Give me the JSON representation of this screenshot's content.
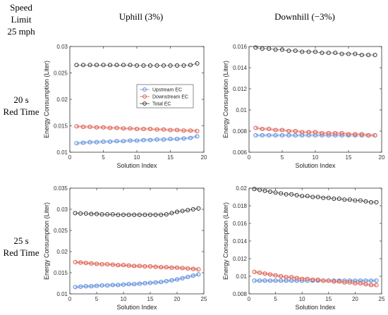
{
  "header": {
    "corner_line1": "Speed",
    "corner_line2": "Limit",
    "corner_line3": "25 mph",
    "col_uphill": "Uphill (3%)",
    "col_downhill": "Downhill (−3%)",
    "row1_line1": "20 s",
    "row1_line2": "Red Time",
    "row2_line1": "25 s",
    "row2_line2": "Red Time"
  },
  "colors": {
    "upstream": "#4a7fd4",
    "downstream": "#d64a3a",
    "total": "#222222",
    "band_up": "#c7d8f5",
    "band_down": "#f5c7c2"
  },
  "chart_data": [
    {
      "id": "uphill-20",
      "type": "scatter",
      "xlabel": "Solution Index",
      "ylabel": "Energy Consumption (Liter)",
      "xlim": [
        0,
        20
      ],
      "ylim": [
        0.01,
        0.03
      ],
      "xticks": [
        "0",
        "5",
        "10",
        "15",
        "20"
      ],
      "yticks": [
        "0.01",
        "0.015",
        "0.02",
        "0.025",
        "0.03"
      ],
      "legend": [
        "Upstream EC",
        "Downstream EC",
        "Total EC"
      ],
      "legend_position": "center-right",
      "x": [
        1,
        2,
        3,
        4,
        5,
        6,
        7,
        8,
        9,
        10,
        11,
        12,
        13,
        14,
        15,
        16,
        17,
        18,
        19
      ],
      "series": [
        {
          "name": "Upstream EC",
          "values": [
            0.0117,
            0.0118,
            0.0119,
            0.0119,
            0.012,
            0.012,
            0.0121,
            0.0121,
            0.0122,
            0.0122,
            0.0123,
            0.0123,
            0.0124,
            0.0124,
            0.0125,
            0.0125,
            0.0126,
            0.0127,
            0.013
          ]
        },
        {
          "name": "Downstream EC",
          "values": [
            0.0149,
            0.0148,
            0.0148,
            0.0147,
            0.0147,
            0.0146,
            0.0146,
            0.0145,
            0.0145,
            0.0144,
            0.0144,
            0.0144,
            0.0143,
            0.0143,
            0.0142,
            0.0142,
            0.0141,
            0.0141,
            0.014
          ]
        },
        {
          "name": "Total EC",
          "values": [
            0.0265,
            0.0265,
            0.0265,
            0.0265,
            0.0265,
            0.0265,
            0.0265,
            0.0265,
            0.0265,
            0.0264,
            0.0264,
            0.0264,
            0.0264,
            0.0264,
            0.0264,
            0.0264,
            0.0264,
            0.0265,
            0.0268
          ]
        }
      ]
    },
    {
      "id": "downhill-20",
      "type": "scatter",
      "xlabel": "Solution Index",
      "ylabel": "Energy Consumption (Liter)",
      "xlim": [
        0,
        20
      ],
      "ylim": [
        0.006,
        0.016
      ],
      "xticks": [
        "0",
        "5",
        "10",
        "15",
        "20"
      ],
      "yticks": [
        "0.006",
        "0.008",
        "0.01",
        "0.012",
        "0.014",
        "0.016"
      ],
      "x": [
        1,
        2,
        3,
        4,
        5,
        6,
        7,
        8,
        9,
        10,
        11,
        12,
        13,
        14,
        15,
        16,
        17,
        18,
        19
      ],
      "series": [
        {
          "name": "Upstream EC",
          "values": [
            0.0076,
            0.0076,
            0.0076,
            0.0076,
            0.0076,
            0.0076,
            0.0076,
            0.0076,
            0.0076,
            0.0076,
            0.0076,
            0.0076,
            0.0076,
            0.0076,
            0.0076,
            0.0076,
            0.0076,
            0.0076,
            0.0076
          ]
        },
        {
          "name": "Downstream EC",
          "values": [
            0.0083,
            0.0082,
            0.0082,
            0.0081,
            0.0081,
            0.008,
            0.008,
            0.0079,
            0.0079,
            0.0079,
            0.0078,
            0.0078,
            0.0078,
            0.0078,
            0.0077,
            0.0077,
            0.0077,
            0.0076,
            0.0076
          ]
        },
        {
          "name": "Total EC",
          "values": [
            0.0159,
            0.0158,
            0.0158,
            0.0157,
            0.0157,
            0.0156,
            0.0156,
            0.0155,
            0.0155,
            0.0155,
            0.0154,
            0.0154,
            0.0154,
            0.0153,
            0.0153,
            0.0153,
            0.0152,
            0.0152,
            0.0152
          ]
        }
      ]
    },
    {
      "id": "uphill-25",
      "type": "scatter",
      "xlabel": "Solution Index",
      "ylabel": "Energy Consumption (Liter)",
      "xlim": [
        0,
        25
      ],
      "ylim": [
        0.01,
        0.035
      ],
      "xticks": [
        "0",
        "5",
        "10",
        "15",
        "20",
        "25"
      ],
      "yticks": [
        "0.01",
        "0.015",
        "0.02",
        "0.025",
        "0.03",
        "0.035"
      ],
      "x": [
        1,
        2,
        3,
        4,
        5,
        6,
        7,
        8,
        9,
        10,
        11,
        12,
        13,
        14,
        15,
        16,
        17,
        18,
        19,
        20,
        21,
        22,
        23,
        24
      ],
      "series": [
        {
          "name": "Upstream EC",
          "values": [
            0.0116,
            0.0117,
            0.0118,
            0.0118,
            0.0119,
            0.012,
            0.012,
            0.0121,
            0.0121,
            0.0122,
            0.0123,
            0.0123,
            0.0124,
            0.0125,
            0.0126,
            0.0127,
            0.0128,
            0.013,
            0.0132,
            0.0134,
            0.0137,
            0.014,
            0.0143,
            0.0146
          ]
        },
        {
          "name": "Downstream EC",
          "values": [
            0.0175,
            0.0174,
            0.0173,
            0.0172,
            0.0171,
            0.017,
            0.017,
            0.0169,
            0.0168,
            0.0168,
            0.0167,
            0.0166,
            0.0166,
            0.0165,
            0.0165,
            0.0164,
            0.0163,
            0.0163,
            0.0162,
            0.0162,
            0.0161,
            0.016,
            0.0159,
            0.0158
          ]
        },
        {
          "name": "Total EC",
          "values": [
            0.0291,
            0.029,
            0.029,
            0.0289,
            0.0289,
            0.0288,
            0.0288,
            0.0288,
            0.0287,
            0.0287,
            0.0287,
            0.0287,
            0.0287,
            0.0287,
            0.0287,
            0.0287,
            0.0287,
            0.0288,
            0.0291,
            0.0294,
            0.0296,
            0.0298,
            0.03,
            0.0302
          ]
        }
      ]
    },
    {
      "id": "downhill-25",
      "type": "scatter",
      "xlabel": "Solution Index",
      "ylabel": "Energy Consumption (Liter)",
      "xlim": [
        0,
        25
      ],
      "ylim": [
        0.008,
        0.02
      ],
      "xticks": [
        "0",
        "5",
        "10",
        "15",
        "20",
        "25"
      ],
      "yticks": [
        "0.008",
        "0.01",
        "0.012",
        "0.014",
        "0.016",
        "0.018",
        "0.02"
      ],
      "x": [
        1,
        2,
        3,
        4,
        5,
        6,
        7,
        8,
        9,
        10,
        11,
        12,
        13,
        14,
        15,
        16,
        17,
        18,
        19,
        20,
        21,
        22,
        23,
        24
      ],
      "series": [
        {
          "name": "Upstream EC",
          "values": [
            0.0095,
            0.0095,
            0.0095,
            0.0095,
            0.0095,
            0.0095,
            0.0095,
            0.0095,
            0.0095,
            0.0095,
            0.0095,
            0.0095,
            0.0095,
            0.0095,
            0.0095,
            0.0095,
            0.0095,
            0.0095,
            0.0095,
            0.0095,
            0.0095,
            0.0095,
            0.0095,
            0.0095
          ]
        },
        {
          "name": "Downstream EC",
          "values": [
            0.0105,
            0.0104,
            0.0103,
            0.0102,
            0.0101,
            0.01,
            0.0099,
            0.0099,
            0.0098,
            0.0097,
            0.0097,
            0.0096,
            0.0096,
            0.0095,
            0.0095,
            0.0094,
            0.0094,
            0.0093,
            0.0093,
            0.0092,
            0.0092,
            0.0091,
            0.009,
            0.009
          ]
        },
        {
          "name": "Total EC",
          "values": [
            0.0199,
            0.0198,
            0.0197,
            0.0196,
            0.0195,
            0.0194,
            0.0193,
            0.0193,
            0.0192,
            0.0191,
            0.0191,
            0.019,
            0.019,
            0.0189,
            0.0189,
            0.0188,
            0.0188,
            0.0187,
            0.0187,
            0.0186,
            0.0186,
            0.0185,
            0.0184,
            0.0184
          ]
        }
      ]
    }
  ]
}
